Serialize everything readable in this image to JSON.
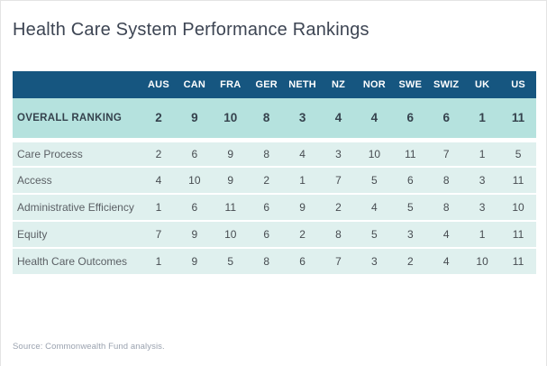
{
  "chart_data": {
    "type": "table",
    "title": "Health Care System Performance Rankings",
    "columns": [
      "AUS",
      "CAN",
      "FRA",
      "GER",
      "NETH",
      "NZ",
      "NOR",
      "SWE",
      "SWIZ",
      "UK",
      "US"
    ],
    "overall_row": {
      "label": "OVERALL RANKING",
      "values": [
        2,
        9,
        10,
        8,
        3,
        4,
        4,
        6,
        6,
        1,
        11
      ]
    },
    "rows": [
      {
        "label": "Care Process",
        "values": [
          2,
          6,
          9,
          8,
          4,
          3,
          10,
          11,
          7,
          1,
          5
        ]
      },
      {
        "label": "Access",
        "values": [
          4,
          10,
          9,
          2,
          1,
          7,
          5,
          6,
          8,
          3,
          11
        ]
      },
      {
        "label": "Administrative Efficiency",
        "values": [
          1,
          6,
          11,
          6,
          9,
          2,
          4,
          5,
          8,
          3,
          10
        ]
      },
      {
        "label": "Equity",
        "values": [
          7,
          9,
          10,
          6,
          2,
          8,
          5,
          3,
          4,
          1,
          11
        ]
      },
      {
        "label": "Health Care Outcomes",
        "values": [
          1,
          9,
          5,
          8,
          6,
          7,
          3,
          2,
          4,
          10,
          11
        ]
      }
    ],
    "source_note": "Source: Commonwealth Fund analysis.",
    "layout": {
      "legend": "none",
      "grid": "off",
      "rank_scale": [
        1,
        11
      ]
    }
  },
  "colors": {
    "header_bg": "#165680",
    "header_text": "#ffffff",
    "overall_row_bg": "#b5e2de",
    "data_row_bg": "#dff0ee",
    "row_separator": "#ffffff",
    "title_text": "#3d4553",
    "label_text": "#5b6065",
    "value_text": "#474c51",
    "source_text": "#9aa2af",
    "card_border": "#e4e4e4"
  }
}
